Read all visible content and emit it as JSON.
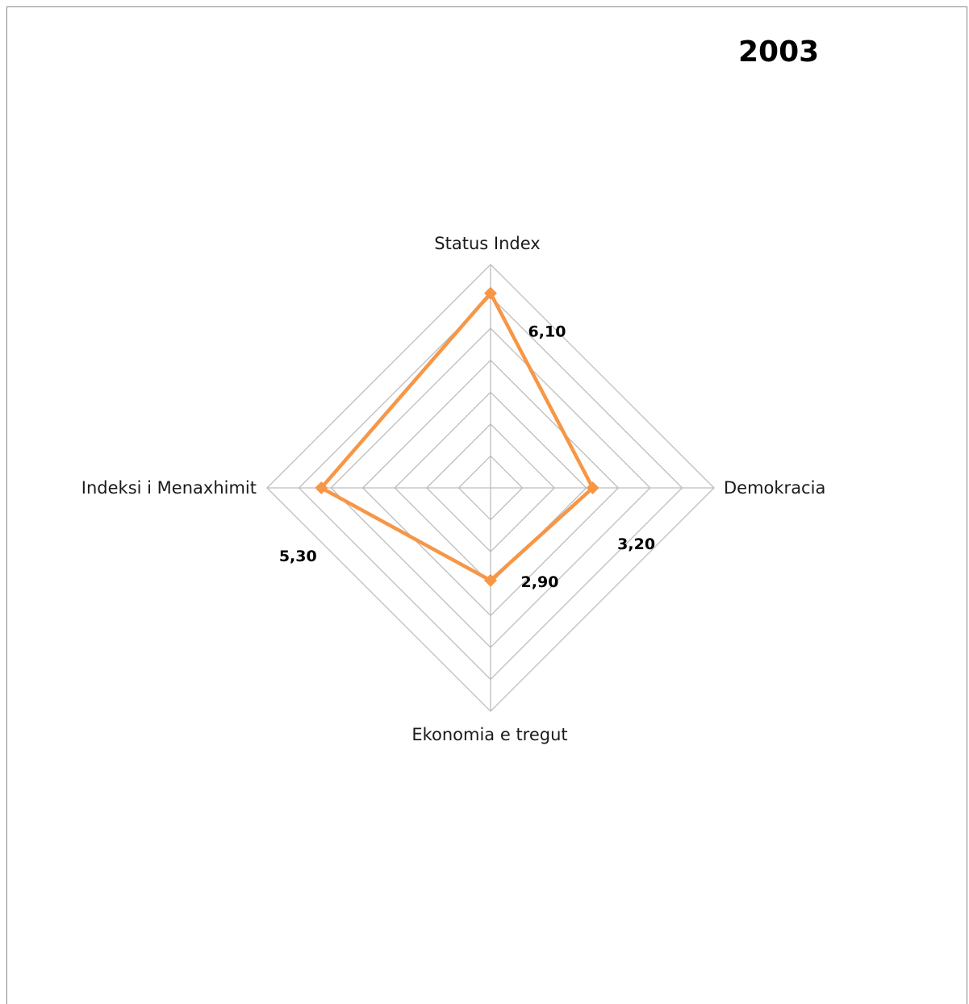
{
  "chart_data": {
    "type": "radar",
    "title": "2003",
    "categories": [
      "Status Index",
      "Demokracia",
      "Ekonomia e tregut",
      "Indeksi i Menaxhimit"
    ],
    "series": [
      {
        "values": [
          6.1,
          3.2,
          2.9,
          5.3
        ],
        "data_labels": [
          "6,10",
          "3,20",
          "2,90",
          "5,30"
        ]
      }
    ],
    "rlim": [
      0,
      7
    ],
    "ring_count": 7,
    "grid": true,
    "legend": "none",
    "colors": {
      "series": "#f79646",
      "grid": "#bdbdbd",
      "frame": "#8a8a8a"
    }
  }
}
